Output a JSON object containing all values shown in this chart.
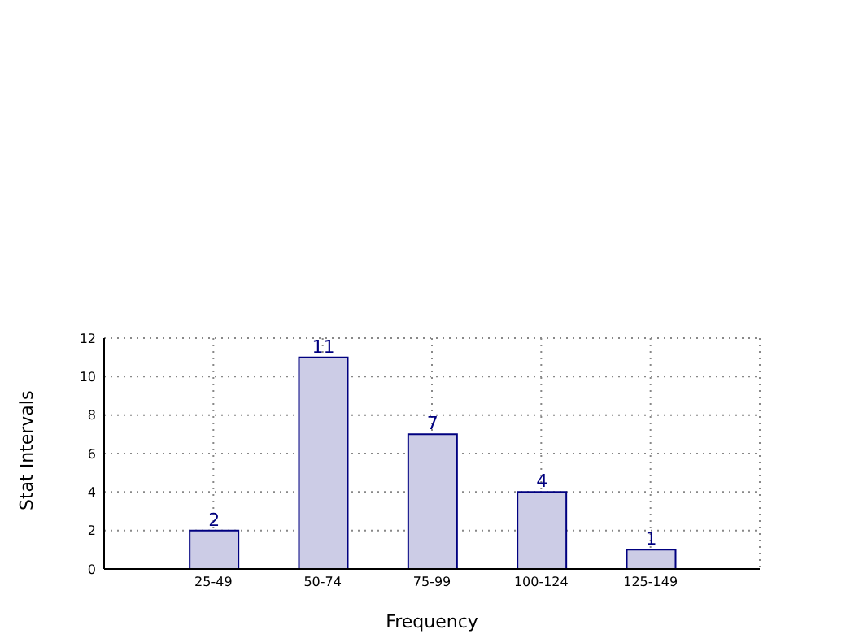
{
  "chart_data": {
    "type": "bar",
    "xlabel": "Frequency",
    "ylabel": "Stat Intervals",
    "categories": [
      "25-49",
      "50-74",
      "75-99",
      "100-124",
      "125-149"
    ],
    "values": [
      2,
      11,
      7,
      4,
      1
    ],
    "color": "#ccccE6",
    "ylim": [
      0,
      12
    ],
    "yticks": [
      0,
      2,
      4,
      6,
      8,
      10,
      12
    ],
    "grid": true,
    "data_labels": true
  }
}
